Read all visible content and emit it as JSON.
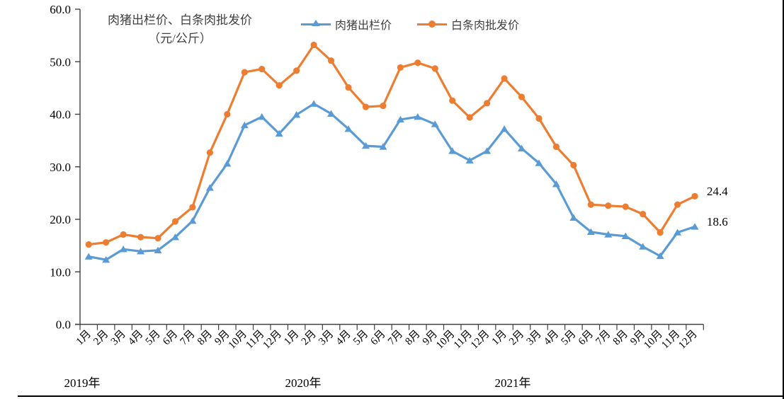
{
  "chart_data": {
    "type": "line",
    "title": "肉猪出栏价、白条肉批发价",
    "title_unit": "（元/公斤）",
    "ylim": [
      0,
      60
    ],
    "y_ticks": [
      "0.0",
      "10.0",
      "20.0",
      "30.0",
      "40.0",
      "50.0",
      "60.0"
    ],
    "x_labels": [
      "1月",
      "2月",
      "3月",
      "4月",
      "5月",
      "6月",
      "7月",
      "8月",
      "9月",
      "10月",
      "11月",
      "12月",
      "1月",
      "2月",
      "3月",
      "4月",
      "5月",
      "6月",
      "7月",
      "8月",
      "9月",
      "10月",
      "11月",
      "12月",
      "1月",
      "2月",
      "3月",
      "4月",
      "5月",
      "6月",
      "7月",
      "8月",
      "9月",
      "10月",
      "11月",
      "12月"
    ],
    "year_labels": [
      "2019年",
      "2020年",
      "2021年"
    ],
    "legend_position": "top",
    "grid": false,
    "series": [
      {
        "name": "肉猪出栏价",
        "color": "#5B9BD5",
        "marker": "triangle",
        "end_label": "18.6",
        "values": [
          12.9,
          12.3,
          14.3,
          13.9,
          14.1,
          16.6,
          19.7,
          26.0,
          30.6,
          37.9,
          39.5,
          36.3,
          39.9,
          42.0,
          40.1,
          37.2,
          34.0,
          33.8,
          39.0,
          39.5,
          38.1,
          33.0,
          31.2,
          33.0,
          37.2,
          33.5,
          30.7,
          26.7,
          20.3,
          17.6,
          17.1,
          16.8,
          14.8,
          13.0,
          17.5,
          18.6
        ]
      },
      {
        "name": "白条肉批发价",
        "color": "#ED7D31",
        "marker": "circle",
        "end_label": "24.4",
        "values": [
          15.2,
          15.6,
          17.1,
          16.6,
          16.4,
          19.6,
          22.3,
          32.7,
          40.0,
          48.0,
          48.6,
          45.5,
          48.3,
          53.2,
          50.2,
          45.1,
          41.4,
          41.6,
          48.9,
          49.8,
          48.7,
          42.6,
          39.4,
          42.1,
          46.8,
          43.3,
          39.2,
          33.8,
          30.3,
          22.8,
          22.6,
          22.4,
          21.0,
          17.5,
          22.8,
          24.4
        ]
      }
    ]
  }
}
